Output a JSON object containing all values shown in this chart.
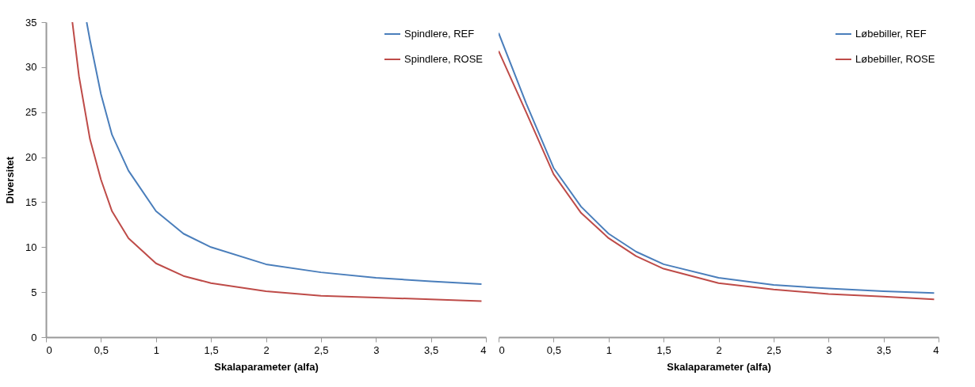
{
  "chart_data": [
    {
      "type": "line",
      "xlabel": "Skalaparameter (alfa)",
      "ylabel": "Diversitet",
      "xlim": [
        0,
        4
      ],
      "ylim": [
        0,
        35
      ],
      "legend": "top right",
      "grid": false,
      "xticks": [
        0,
        {
          "value": 0.5,
          "label": "0,5"
        },
        1,
        {
          "value": 1.5,
          "label": "1,5"
        },
        2,
        {
          "value": 2.5,
          "label": "2,5"
        },
        3,
        {
          "value": 3.5,
          "label": "3,5"
        },
        4
      ],
      "yticks": [
        0,
        5,
        10,
        15,
        20,
        25,
        30,
        35
      ],
      "series": [
        {
          "name": "Spindlere, REF",
          "color": "#4a7ebb",
          "x": [
            0.37,
            0.4,
            0.5,
            0.6,
            0.75,
            1,
            1.25,
            1.5,
            2,
            2.5,
            3,
            3.5,
            3.96
          ],
          "values": [
            35,
            33,
            27,
            22.5,
            18.5,
            14,
            11.5,
            10,
            8.1,
            7.2,
            6.6,
            6.2,
            5.9
          ]
        },
        {
          "name": "Spindlere, ROSE",
          "color": "#be4b48",
          "x": [
            0.24,
            0.3,
            0.4,
            0.5,
            0.6,
            0.75,
            1,
            1.25,
            1.5,
            2,
            2.5,
            3,
            3.5,
            3.96
          ],
          "values": [
            35,
            29,
            22,
            17.5,
            14,
            11,
            8.2,
            6.8,
            6,
            5.1,
            4.6,
            4.4,
            4.2,
            4
          ]
        }
      ]
    },
    {
      "type": "line",
      "xlabel": "Skalaparameter (alfa)",
      "xlim": [
        0,
        4
      ],
      "ylim": [
        0,
        35
      ],
      "legend": "top right",
      "grid": false,
      "tick_labels": "x",
      "xticks": [
        0,
        {
          "value": 0.5,
          "label": "0,5"
        },
        1,
        {
          "value": 1.5,
          "label": "1,5"
        },
        2,
        {
          "value": 2.5,
          "label": "2,5"
        },
        3,
        {
          "value": 3.5,
          "label": "3,5"
        },
        4
      ],
      "yticks": [
        0,
        5,
        10,
        15,
        20,
        25,
        30,
        35
      ],
      "series": [
        {
          "name": "Løbebiller, REF",
          "color": "#4a7ebb",
          "x": [
            0,
            0.25,
            0.5,
            0.75,
            1,
            1.25,
            1.5,
            2,
            2.5,
            3,
            3.5,
            3.96
          ],
          "values": [
            33.8,
            26,
            18.8,
            14.5,
            11.5,
            9.5,
            8.1,
            6.6,
            5.8,
            5.4,
            5.1,
            4.9
          ]
        },
        {
          "name": "Løbebiller, ROSE",
          "color": "#be4b48",
          "x": [
            0,
            0.25,
            0.5,
            0.75,
            1,
            1.25,
            1.5,
            2,
            2.5,
            3,
            3.5,
            3.96
          ],
          "values": [
            31.8,
            25,
            18.1,
            13.8,
            11,
            9,
            7.6,
            6,
            5.3,
            4.8,
            4.5,
            4.2
          ]
        }
      ]
    }
  ]
}
